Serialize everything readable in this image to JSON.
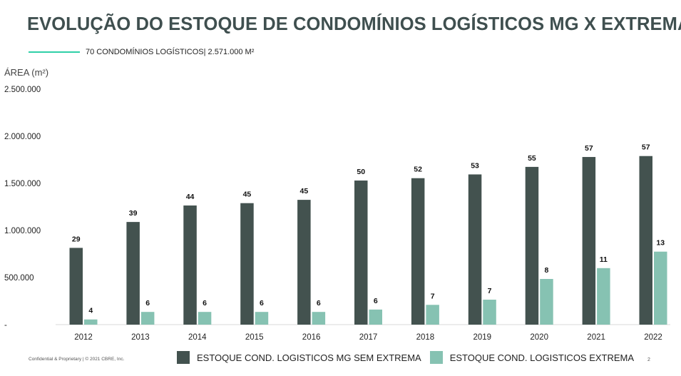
{
  "header": {
    "title": "EVOLUÇÃO DO ESTOQUE DE CONDOMÍNIOS LOGÍSTICOS MG X EXTREMA",
    "subtitle": "70 CONDOMÍNIOS LOGÍSTICOS| 2.571.000 M²"
  },
  "footer": {
    "confidential": "Confidential & Proprietary | © 2021 CBRE, Inc.",
    "page_number": "2"
  },
  "colors": {
    "series_mg": "#43524f",
    "series_extrema": "#86c2b2",
    "accent_line": "#2fd0a8",
    "title": "#3f4f4f"
  },
  "chart_data": {
    "type": "bar",
    "ylabel": "ÁREA (m²)",
    "ylim": [
      0,
      2500000
    ],
    "y_ticks": [
      0,
      500000,
      1000000,
      1500000,
      2000000,
      2500000
    ],
    "y_tick_labels": [
      "-",
      "500.000",
      "1.000.000",
      "1.500.000",
      "2.000.000",
      "2.500.000"
    ],
    "grid": false,
    "legend_position": "bottom",
    "categories": [
      "2012",
      "2013",
      "2014",
      "2015",
      "2016",
      "2017",
      "2018",
      "2019",
      "2020",
      "2021",
      "2022"
    ],
    "series": [
      {
        "name": "ESTOQUE COND. LOGISTICOS MG SEM EXTREMA",
        "values": [
          815000,
          1090000,
          1265000,
          1290000,
          1325000,
          1530000,
          1555000,
          1595000,
          1675000,
          1780000,
          1790000
        ],
        "labels": [
          "29",
          "39",
          "44",
          "45",
          "45",
          "50",
          "52",
          "53",
          "55",
          "57",
          "57"
        ]
      },
      {
        "name": "ESTOQUE COND. LOGISTICOS EXTREMA",
        "values": [
          55000,
          135000,
          135000,
          135000,
          135000,
          160000,
          210000,
          265000,
          485000,
          600000,
          775000
        ],
        "labels": [
          "4",
          "6",
          "6",
          "6",
          "6",
          "6",
          "7",
          "7",
          "8",
          "11",
          "13"
        ]
      }
    ]
  }
}
